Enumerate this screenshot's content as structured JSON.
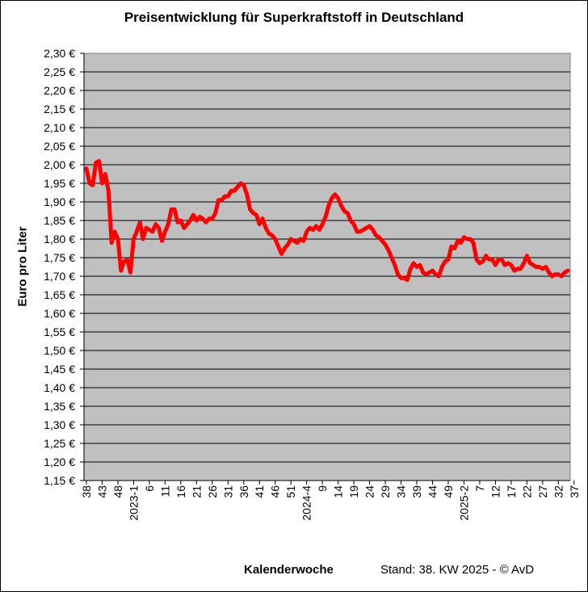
{
  "chart_data": {
    "type": "line",
    "title": "Preisentwicklung für Superkraftstoff in Deutschland",
    "ylabel": "Euro pro Liter",
    "xlabel": "Kalenderwoche",
    "footnote": "Stand: 38. KW 2025 - © AvD",
    "ylim": [
      1.15,
      2.3
    ],
    "ystep": 0.05,
    "yticks": [
      "1,15 €",
      "1,20 €",
      "1,25 €",
      "1,30 €",
      "1,35 €",
      "1,40 €",
      "1,45 €",
      "1,50 €",
      "1,55 €",
      "1,60 €",
      "1,65 €",
      "1,70 €",
      "1,75 €",
      "1,80 €",
      "1,85 €",
      "1,90 €",
      "1,95 €",
      "2,00 €",
      "2,05 €",
      "2,10 €",
      "2,15 €",
      "2,20 €",
      "2,25 €",
      "2,30 €"
    ],
    "xticks": [
      {
        "i": 0,
        "label": "38"
      },
      {
        "i": 5,
        "label": "43"
      },
      {
        "i": 10,
        "label": "48"
      },
      {
        "i": 15,
        "label": "2023-1"
      },
      {
        "i": 20,
        "label": "6"
      },
      {
        "i": 25,
        "label": "11"
      },
      {
        "i": 30,
        "label": "16"
      },
      {
        "i": 35,
        "label": "21"
      },
      {
        "i": 40,
        "label": "26"
      },
      {
        "i": 45,
        "label": "31"
      },
      {
        "i": 50,
        "label": "36"
      },
      {
        "i": 55,
        "label": "41"
      },
      {
        "i": 60,
        "label": "46"
      },
      {
        "i": 65,
        "label": "51"
      },
      {
        "i": 70,
        "label": "2024-4"
      },
      {
        "i": 75,
        "label": "9"
      },
      {
        "i": 80,
        "label": "14"
      },
      {
        "i": 85,
        "label": "19"
      },
      {
        "i": 90,
        "label": "24"
      },
      {
        "i": 95,
        "label": "29"
      },
      {
        "i": 100,
        "label": "34"
      },
      {
        "i": 105,
        "label": "39"
      },
      {
        "i": 110,
        "label": "44"
      },
      {
        "i": 115,
        "label": "49"
      },
      {
        "i": 120,
        "label": "2025-2"
      },
      {
        "i": 125,
        "label": "7"
      },
      {
        "i": 130,
        "label": "12"
      },
      {
        "i": 135,
        "label": "17"
      },
      {
        "i": 140,
        "label": "22"
      },
      {
        "i": 145,
        "label": "27"
      },
      {
        "i": 150,
        "label": "32"
      },
      {
        "i": 155,
        "label": "37"
      }
    ],
    "grid": true,
    "legend": "none",
    "series": [
      {
        "color": "#ff0000",
        "values": [
          1.99,
          1.95,
          1.945,
          2.005,
          2.01,
          1.95,
          1.975,
          1.93,
          1.79,
          1.82,
          1.8,
          1.715,
          1.74,
          1.745,
          1.71,
          1.8,
          1.82,
          1.845,
          1.8,
          1.83,
          1.825,
          1.82,
          1.84,
          1.83,
          1.795,
          1.82,
          1.84,
          1.88,
          1.88,
          1.845,
          1.85,
          1.83,
          1.84,
          1.85,
          1.865,
          1.85,
          1.86,
          1.855,
          1.845,
          1.855,
          1.855,
          1.87,
          1.905,
          1.905,
          1.915,
          1.915,
          1.93,
          1.93,
          1.94,
          1.95,
          1.945,
          1.92,
          1.88,
          1.87,
          1.865,
          1.84,
          1.855,
          1.83,
          1.815,
          1.81,
          1.8,
          1.78,
          1.76,
          1.775,
          1.785,
          1.8,
          1.795,
          1.79,
          1.8,
          1.795,
          1.82,
          1.83,
          1.825,
          1.835,
          1.825,
          1.84,
          1.86,
          1.89,
          1.91,
          1.92,
          1.91,
          1.89,
          1.875,
          1.87,
          1.85,
          1.84,
          1.82,
          1.82,
          1.825,
          1.83,
          1.835,
          1.825,
          1.81,
          1.805,
          1.795,
          1.785,
          1.77,
          1.75,
          1.73,
          1.705,
          1.695,
          1.695,
          1.69,
          1.72,
          1.735,
          1.725,
          1.73,
          1.71,
          1.705,
          1.71,
          1.715,
          1.705,
          1.7,
          1.725,
          1.74,
          1.745,
          1.78,
          1.775,
          1.795,
          1.79,
          1.805,
          1.8,
          1.8,
          1.79,
          1.745,
          1.735,
          1.74,
          1.755,
          1.745,
          1.745,
          1.73,
          1.745,
          1.745,
          1.73,
          1.735,
          1.73,
          1.715,
          1.72,
          1.72,
          1.735,
          1.755,
          1.735,
          1.73,
          1.725,
          1.725,
          1.72,
          1.725,
          1.71,
          1.7,
          1.705,
          1.705,
          1.7,
          1.71,
          1.715
        ]
      }
    ]
  }
}
